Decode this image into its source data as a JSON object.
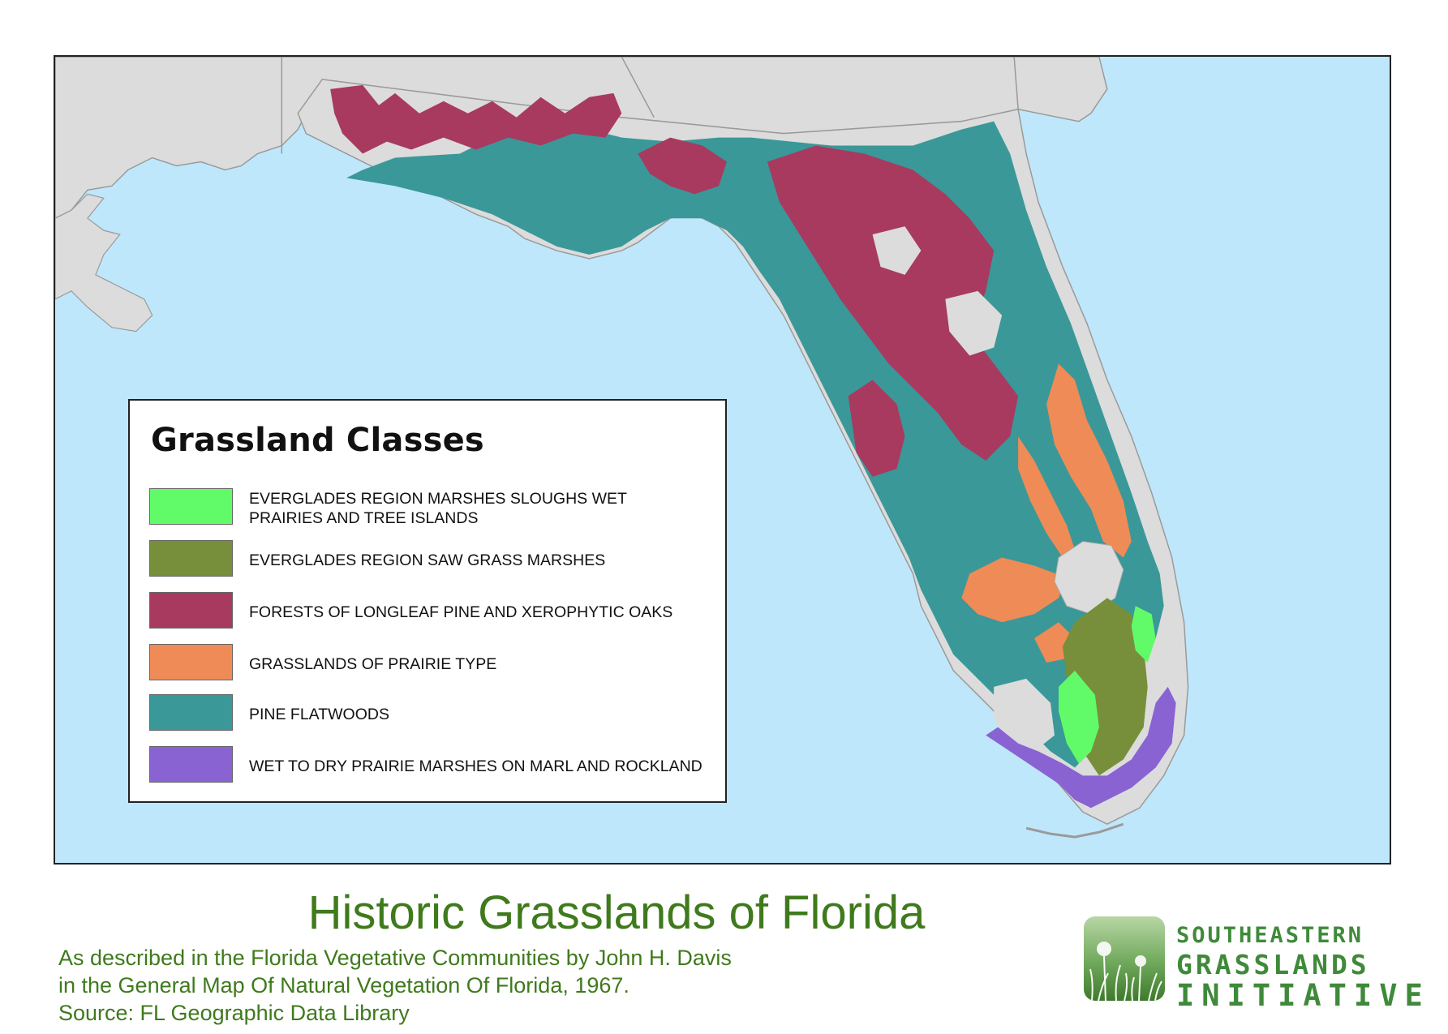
{
  "legend": {
    "title": "Grassland Classes",
    "items": [
      {
        "label": "EVERGLADES REGION MARSHES SLOUGHS WET PRAIRIES AND TREE ISLANDS",
        "color": "#61fb6a"
      },
      {
        "label": "EVERGLADES REGION SAW GRASS MARSHES",
        "color": "#778f3a"
      },
      {
        "label": "FORESTS OF LONGLEAF PINE AND XEROPHYTIC OAKS",
        "color": "#a83a5f"
      },
      {
        "label": "GRASSLANDS OF PRAIRIE TYPE",
        "color": "#ef8b56"
      },
      {
        "label": "PINE FLATWOODS",
        "color": "#3a9899"
      },
      {
        "label": "WET TO DRY PRAIRIE MARSHES ON MARL AND ROCKLAND",
        "color": "#8a63d2"
      }
    ]
  },
  "map": {
    "water_color": "#bfe7fb",
    "land_color": "#dcdcdc",
    "state_color": "#d9d9d9"
  },
  "title": "Historic Grasslands of Florida",
  "caption": {
    "line1": "As described in the Florida Vegetative Communities by John H. Davis",
    "line2": "in the General Map Of Natural Vegetation Of Florida, 1967.",
    "line3": "Source: FL Geographic Data Library"
  },
  "org": {
    "line1": "SOUTHEASTERN",
    "line2": "GRASSLANDS",
    "line3": "INITIATIVE",
    "color": "#3f8a3a"
  }
}
